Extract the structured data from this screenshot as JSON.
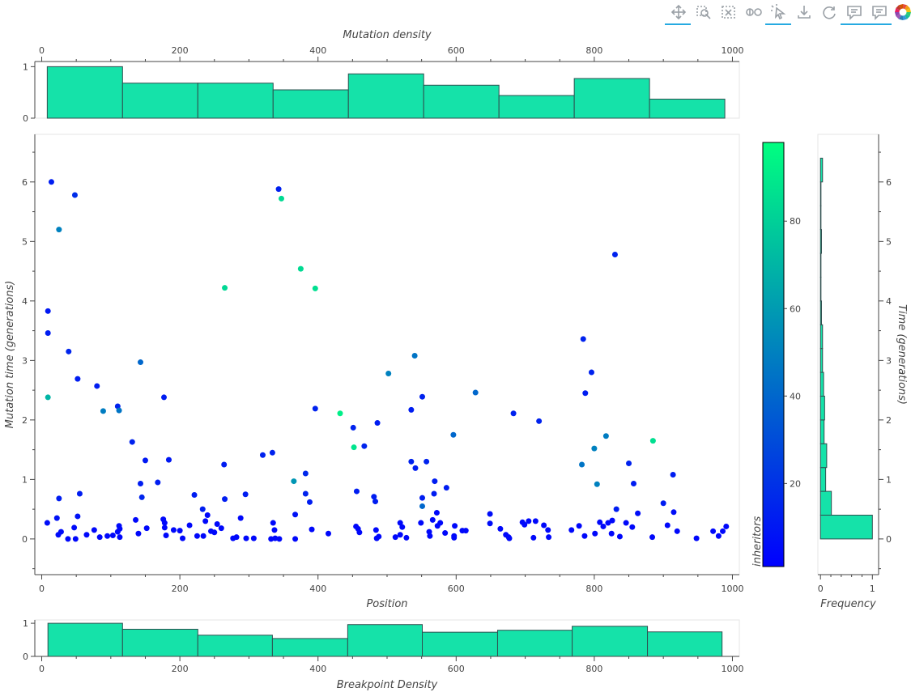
{
  "toolbar": {
    "tools": [
      {
        "name": "pan-tool",
        "icon": "pan-icon",
        "active": true
      },
      {
        "name": "box-zoom-tool",
        "icon": "box-zoom-icon",
        "active": false
      },
      {
        "name": "zoom-out-tool",
        "icon": "zoom-out-icon",
        "active": false
      },
      {
        "name": "wheel-zoom-tool",
        "icon": "wheel-zoom-icon",
        "active": false
      },
      {
        "name": "tap-select-tool",
        "icon": "tap-icon",
        "active": true
      },
      {
        "name": "save-tool",
        "icon": "save-icon",
        "active": false
      },
      {
        "name": "reset-tool",
        "icon": "reset-icon",
        "active": false
      },
      {
        "name": "hover-tool",
        "icon": "hover-icon",
        "active": true
      },
      {
        "name": "hover-tool-2",
        "icon": "hover-icon",
        "active": true
      },
      {
        "name": "bokeh-logo",
        "icon": "bokeh-logo-icon",
        "active": false
      }
    ]
  },
  "chart_data": [
    {
      "id": "top-hist",
      "type": "bar",
      "title": "",
      "xlabel": "Mutation density",
      "ylabel": "",
      "xlim": [
        -10,
        1010
      ],
      "ylim": [
        0,
        1.1
      ],
      "x_ticks": [
        0,
        200,
        400,
        600,
        800,
        1000
      ],
      "y_ticks": [
        0,
        1
      ],
      "x_axis_position": "top",
      "bin_edges": [
        8,
        117,
        226,
        335,
        444,
        553,
        662,
        771,
        880,
        989
      ],
      "values": [
        1.0,
        0.68,
        0.68,
        0.55,
        0.86,
        0.64,
        0.44,
        0.77,
        0.37
      ],
      "fill": "#15e2a9",
      "line": "#2f4f4f"
    },
    {
      "id": "main-scatter",
      "type": "scatter",
      "title": "",
      "xlabel": "Position",
      "ylabel": "Mutation time (generations)",
      "xlim": [
        -10,
        1010
      ],
      "ylim": [
        -0.6,
        6.8
      ],
      "x_ticks": [
        0,
        200,
        400,
        600,
        800,
        1000
      ],
      "y_ticks": [
        0,
        1,
        2,
        3,
        4,
        5,
        6
      ],
      "color_field": "inheritors",
      "color_low": "#0000ff",
      "color_high": "#00ff80",
      "color_range": [
        1,
        98
      ],
      "points": [
        [
          14,
          6.0,
          12
        ],
        [
          48,
          5.78,
          18
        ],
        [
          25,
          5.2,
          50
        ],
        [
          343,
          5.88,
          13
        ],
        [
          347,
          5.72,
          84
        ],
        [
          265,
          4.22,
          83
        ],
        [
          375,
          4.54,
          84
        ],
        [
          396,
          4.21,
          86
        ],
        [
          9,
          3.83,
          10
        ],
        [
          9,
          3.46,
          12
        ],
        [
          39,
          3.15,
          15
        ],
        [
          52,
          2.69,
          12
        ],
        [
          80,
          2.57,
          12
        ],
        [
          143,
          2.97,
          40
        ],
        [
          177,
          2.38,
          12
        ],
        [
          9,
          2.38,
          70
        ],
        [
          89,
          2.15,
          48
        ],
        [
          110,
          2.23,
          14
        ],
        [
          112,
          2.16,
          45
        ],
        [
          131,
          1.63,
          14
        ],
        [
          150,
          1.32,
          10
        ],
        [
          168,
          0.95,
          12
        ],
        [
          184,
          1.33,
          10
        ],
        [
          143,
          0.93,
          12
        ],
        [
          145,
          0.7,
          15
        ],
        [
          55,
          0.76,
          12
        ],
        [
          25,
          0.68,
          12
        ],
        [
          22,
          0.35,
          8
        ],
        [
          8,
          0.27,
          6
        ],
        [
          24,
          0.07,
          5
        ],
        [
          28,
          0.12,
          5
        ],
        [
          38,
          0.0,
          4
        ],
        [
          49,
          0.0,
          4
        ],
        [
          52,
          0.38,
          8
        ],
        [
          47,
          0.19,
          5
        ],
        [
          65,
          0.07,
          4
        ],
        [
          76,
          0.15,
          4
        ],
        [
          84,
          0.03,
          4
        ],
        [
          95,
          0.05,
          4
        ],
        [
          103,
          0.06,
          4
        ],
        [
          110,
          0.12,
          4
        ],
        [
          112,
          0.22,
          5
        ],
        [
          113,
          0.03,
          4
        ],
        [
          113,
          0.17,
          4
        ],
        [
          136,
          0.32,
          4
        ],
        [
          140,
          0.09,
          4
        ],
        [
          152,
          0.18,
          4
        ],
        [
          176,
          0.33,
          4
        ],
        [
          178,
          0.27,
          4
        ],
        [
          180,
          0.06,
          4
        ],
        [
          178,
          0.19,
          4
        ],
        [
          191,
          0.15,
          4
        ],
        [
          200,
          0.14,
          4
        ],
        [
          204,
          0.01,
          4
        ],
        [
          214,
          0.23,
          4
        ],
        [
          221,
          0.74,
          12
        ],
        [
          225,
          0.05,
          4
        ],
        [
          233,
          0.5,
          12
        ],
        [
          234,
          0.05,
          4
        ],
        [
          237,
          0.3,
          4
        ],
        [
          240,
          0.4,
          4
        ],
        [
          245,
          0.13,
          5
        ],
        [
          250,
          0.11,
          4
        ],
        [
          254,
          0.25,
          4
        ],
        [
          260,
          0.18,
          4
        ],
        [
          264,
          1.25,
          12
        ],
        [
          265,
          0.67,
          12
        ],
        [
          277,
          0.01,
          4
        ],
        [
          282,
          0.03,
          4
        ],
        [
          288,
          0.35,
          4
        ],
        [
          295,
          0.75,
          12
        ],
        [
          296,
          0.01,
          4
        ],
        [
          307,
          0.01,
          4
        ],
        [
          320,
          1.41,
          14
        ],
        [
          332,
          0.0,
          4
        ],
        [
          334,
          1.45,
          14
        ],
        [
          335,
          0.27,
          4
        ],
        [
          337,
          0.15,
          4
        ],
        [
          338,
          0.01,
          4
        ],
        [
          344,
          0.0,
          4
        ],
        [
          365,
          0.97,
          58
        ],
        [
          367,
          0.0,
          4
        ],
        [
          367,
          0.41,
          8
        ],
        [
          382,
          1.1,
          16
        ],
        [
          382,
          0.76,
          14
        ],
        [
          388,
          0.62,
          12
        ],
        [
          391,
          0.16,
          4
        ],
        [
          396,
          2.19,
          14
        ],
        [
          415,
          0.09,
          4
        ],
        [
          432,
          2.11,
          92
        ],
        [
          451,
          1.87,
          14
        ],
        [
          452,
          1.54,
          88
        ],
        [
          456,
          0.8,
          12
        ],
        [
          455,
          0.21,
          4
        ],
        [
          458,
          0.17,
          4
        ],
        [
          460,
          0.11,
          4
        ],
        [
          467,
          1.56,
          15
        ],
        [
          481,
          0.71,
          12
        ],
        [
          483,
          0.63,
          12
        ],
        [
          484,
          0.15,
          4
        ],
        [
          485,
          0.01,
          4
        ],
        [
          486,
          1.95,
          12
        ],
        [
          488,
          0.04,
          4
        ],
        [
          502,
          2.78,
          50
        ],
        [
          512,
          0.03,
          4
        ],
        [
          519,
          0.27,
          4
        ],
        [
          519,
          0.07,
          4
        ],
        [
          522,
          0.2,
          4
        ],
        [
          528,
          0.02,
          4
        ],
        [
          535,
          2.17,
          12
        ],
        [
          535,
          1.3,
          14
        ],
        [
          540,
          3.08,
          45
        ],
        [
          541,
          1.19,
          12
        ],
        [
          549,
          0.27,
          4
        ],
        [
          551,
          2.39,
          14
        ],
        [
          551,
          0.69,
          12
        ],
        [
          551,
          0.55,
          40
        ],
        [
          557,
          1.3,
          14
        ],
        [
          561,
          0.12,
          4
        ],
        [
          562,
          0.05,
          4
        ],
        [
          566,
          0.32,
          4
        ],
        [
          568,
          0.76,
          12
        ],
        [
          569,
          0.97,
          12
        ],
        [
          572,
          0.44,
          4
        ],
        [
          573,
          0.22,
          4
        ],
        [
          577,
          0.27,
          4
        ],
        [
          584,
          0.1,
          4
        ],
        [
          586,
          0.86,
          12
        ],
        [
          597,
          0.05,
          4
        ],
        [
          597,
          0.02,
          4
        ],
        [
          598,
          0.22,
          4
        ],
        [
          596,
          1.75,
          40
        ],
        [
          609,
          0.14,
          4
        ],
        [
          614,
          0.14,
          4
        ],
        [
          628,
          2.46,
          40
        ],
        [
          649,
          0.42,
          6
        ],
        [
          649,
          0.26,
          6
        ],
        [
          664,
          0.17,
          4
        ],
        [
          672,
          0.07,
          4
        ],
        [
          676,
          0.03,
          4
        ],
        [
          677,
          0.01,
          4
        ],
        [
          683,
          2.11,
          14
        ],
        [
          696,
          0.28,
          4
        ],
        [
          699,
          0.24,
          4
        ],
        [
          705,
          0.3,
          4
        ],
        [
          712,
          0.02,
          4
        ],
        [
          715,
          0.3,
          4
        ],
        [
          720,
          1.98,
          14
        ],
        [
          727,
          0.23,
          4
        ],
        [
          733,
          0.15,
          4
        ],
        [
          734,
          0.03,
          4
        ],
        [
          767,
          0.15,
          4
        ],
        [
          778,
          0.22,
          4
        ],
        [
          782,
          1.25,
          45
        ],
        [
          784,
          3.36,
          14
        ],
        [
          786,
          0.05,
          4
        ],
        [
          787,
          2.45,
          12
        ],
        [
          796,
          2.8,
          14
        ],
        [
          800,
          1.52,
          50
        ],
        [
          801,
          0.09,
          4
        ],
        [
          804,
          0.92,
          50
        ],
        [
          808,
          0.28,
          4
        ],
        [
          813,
          0.21,
          4
        ],
        [
          817,
          1.73,
          48
        ],
        [
          820,
          0.27,
          4
        ],
        [
          825,
          0.09,
          4
        ],
        [
          826,
          0.31,
          4
        ],
        [
          830,
          4.78,
          14
        ],
        [
          832,
          0.5,
          12
        ],
        [
          837,
          0.04,
          4
        ],
        [
          846,
          0.27,
          4
        ],
        [
          850,
          1.27,
          14
        ],
        [
          855,
          0.2,
          4
        ],
        [
          857,
          0.93,
          12
        ],
        [
          863,
          0.43,
          6
        ],
        [
          884,
          0.03,
          4
        ],
        [
          885,
          1.65,
          86
        ],
        [
          900,
          0.6,
          12
        ],
        [
          906,
          0.23,
          4
        ],
        [
          914,
          1.08,
          12
        ],
        [
          915,
          0.45,
          6
        ],
        [
          920,
          0.13,
          4
        ],
        [
          948,
          0.01,
          4
        ],
        [
          972,
          0.13,
          4
        ],
        [
          980,
          0.05,
          4
        ],
        [
          986,
          0.13,
          4
        ],
        [
          991,
          0.21,
          4
        ]
      ]
    },
    {
      "id": "bottom-hist",
      "type": "bar",
      "title": "",
      "xlabel": "Breakpoint Density",
      "ylabel": "",
      "xlim": [
        -10,
        1010
      ],
      "ylim": [
        0,
        1.1
      ],
      "x_ticks": [
        0,
        200,
        400,
        600,
        800,
        1000
      ],
      "y_ticks": [
        0,
        1
      ],
      "x_axis_position": "bottom",
      "bin_edges": [
        9,
        117,
        226,
        334,
        443,
        551,
        660,
        768,
        877,
        985
      ],
      "values": [
        1.0,
        0.82,
        0.64,
        0.54,
        0.96,
        0.73,
        0.79,
        0.91,
        0.74
      ],
      "fill": "#15e2a9",
      "line": "#2f4f4f"
    },
    {
      "id": "right-hist",
      "type": "bar",
      "orientation": "horizontal",
      "title": "",
      "xlabel": "Frequency",
      "ylabel": "Time (generations)",
      "xlim": [
        -0.05,
        1.12
      ],
      "ylim": [
        -0.6,
        6.8
      ],
      "x_ticks": [
        0,
        1
      ],
      "y_ticks": [
        0,
        1,
        2,
        3,
        4,
        5,
        6
      ],
      "y_axis_position": "right",
      "bin_edges": [
        0.0,
        0.4,
        0.8,
        1.2,
        1.6,
        2.0,
        2.4,
        2.8,
        3.2,
        3.6,
        4.0,
        4.4,
        4.8,
        5.2,
        5.6,
        6.0,
        6.4
      ],
      "values": [
        1.0,
        0.21,
        0.1,
        0.12,
        0.07,
        0.08,
        0.06,
        0.04,
        0.04,
        0.02,
        0.01,
        0.01,
        0.02,
        0.01,
        0.01,
        0.04
      ],
      "fill": "#15e2a9",
      "line": "#2f4f4f"
    },
    {
      "id": "colorbar",
      "type": "heatmap",
      "title": "inheritors",
      "range": [
        1,
        98
      ],
      "ticks": [
        20,
        40,
        60,
        80
      ],
      "color_low": "#0000ff",
      "color_high": "#00ff80"
    }
  ]
}
